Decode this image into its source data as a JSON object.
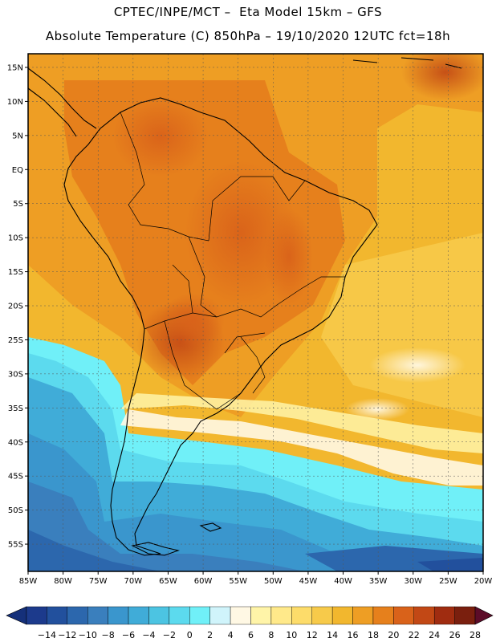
{
  "header": {
    "line1": "CPTEC/INPE/MCT –  Eta Model 15km – GFS",
    "line2": "Absolute Temperature (C) 850hPa – 19/10/2020 12UTC fct=18h"
  },
  "map": {
    "region": "South America",
    "lon_range": [
      -85,
      -20
    ],
    "lat_range": [
      -59,
      17
    ],
    "lat_ticks": [
      {
        "value": 15,
        "label": "15N"
      },
      {
        "value": 10,
        "label": "10N"
      },
      {
        "value": 5,
        "label": "5N"
      },
      {
        "value": 0,
        "label": "EQ"
      },
      {
        "value": -5,
        "label": "5S"
      },
      {
        "value": -10,
        "label": "10S"
      },
      {
        "value": -15,
        "label": "15S"
      },
      {
        "value": -20,
        "label": "20S"
      },
      {
        "value": -25,
        "label": "25S"
      },
      {
        "value": -30,
        "label": "30S"
      },
      {
        "value": -35,
        "label": "35S"
      },
      {
        "value": -40,
        "label": "40S"
      },
      {
        "value": -45,
        "label": "45S"
      },
      {
        "value": -50,
        "label": "50S"
      },
      {
        "value": -55,
        "label": "55S"
      }
    ],
    "lon_ticks": [
      {
        "value": -85,
        "label": "85W"
      },
      {
        "value": -80,
        "label": "80W"
      },
      {
        "value": -75,
        "label": "75W"
      },
      {
        "value": -70,
        "label": "70W"
      },
      {
        "value": -65,
        "label": "65W"
      },
      {
        "value": -60,
        "label": "60W"
      },
      {
        "value": -55,
        "label": "55W"
      },
      {
        "value": -50,
        "label": "50W"
      },
      {
        "value": -45,
        "label": "45W"
      },
      {
        "value": -40,
        "label": "40W"
      },
      {
        "value": -35,
        "label": "35W"
      },
      {
        "value": -30,
        "label": "30W"
      },
      {
        "value": -25,
        "label": "25W"
      },
      {
        "value": -20,
        "label": "20W"
      }
    ]
  },
  "colorbar": {
    "labels": [
      "-14",
      "-12",
      "-10",
      "-8",
      "-6",
      "-4",
      "-2",
      "0",
      "2",
      "4",
      "6",
      "8",
      "10",
      "12",
      "14",
      "16",
      "18",
      "20",
      "22",
      "24",
      "26",
      "28"
    ],
    "colors": [
      "#1c3a8c",
      "#22509d",
      "#2c67ad",
      "#3a7fbd",
      "#3a96cd",
      "#40acd8",
      "#4cc4e2",
      "#5cdaee",
      "#70f0f8",
      "#d0f4fb",
      "#fff8e4",
      "#fff4a8",
      "#ffe98a",
      "#fddc6a",
      "#f7ca4a",
      "#f2b72e",
      "#ee9e24",
      "#e6801c",
      "#d9621a",
      "#c24815",
      "#a02c10",
      "#7a1f0e"
    ],
    "low_color": "#15307a",
    "high_color": "#5c0c28"
  }
}
